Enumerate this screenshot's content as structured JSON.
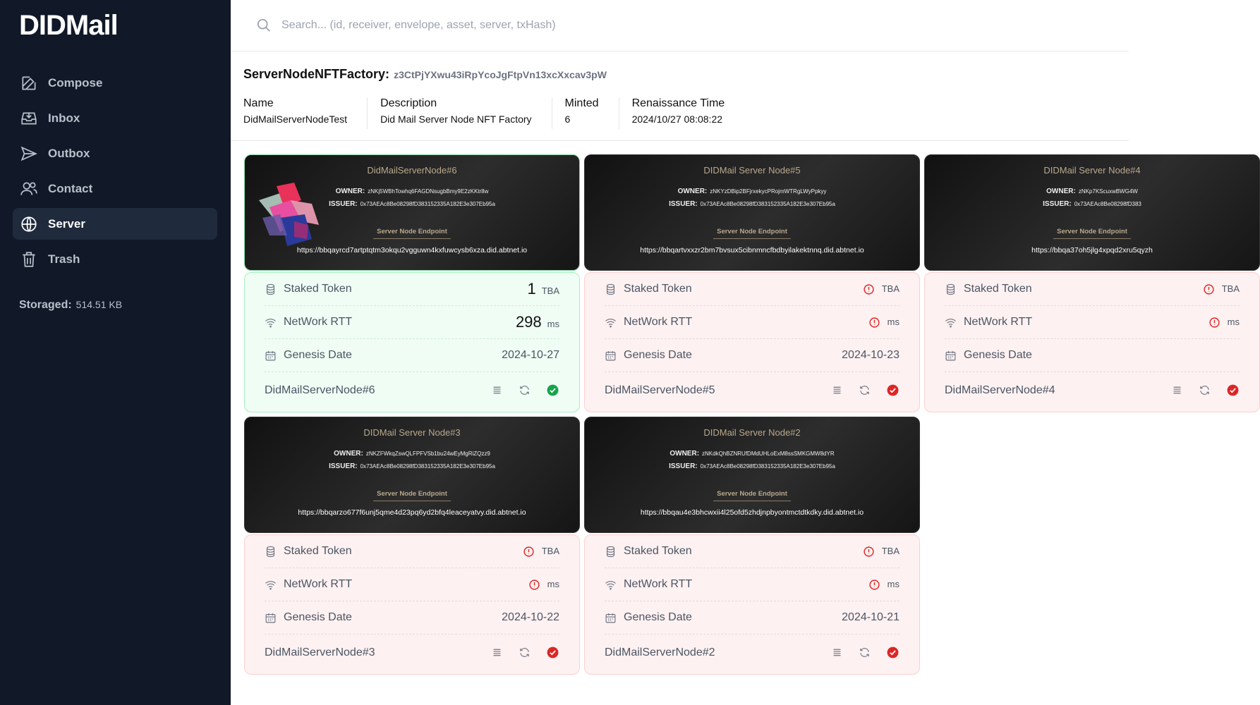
{
  "sidebar": {
    "brand": "DIDMail",
    "nav": [
      {
        "label": "Compose"
      },
      {
        "label": "Inbox"
      },
      {
        "label": "Outbox"
      },
      {
        "label": "Contact"
      },
      {
        "label": "Server"
      },
      {
        "label": "Trash"
      }
    ],
    "active": 4,
    "storage_label": "Storaged:",
    "storage_value": "514.51 KB"
  },
  "search": {
    "placeholder": "Search... (id, receiver, envelope, asset, server, txHash)"
  },
  "factory": {
    "title": "ServerNodeNFTFactory:",
    "address": "z3CtPjYXwu43iRpYcoJgFtpVn13xcXxcav3pW",
    "fields": [
      {
        "label": "Name",
        "value": "DidMailServerNodeTest"
      },
      {
        "label": "Description",
        "value": "Did Mail Server Node NFT Factory"
      },
      {
        "label": "Minted",
        "value": "6"
      },
      {
        "label": "Renaissance Time",
        "value": "2024/10/27 08:08:22"
      }
    ]
  },
  "card_labels": {
    "owner": "OWNER:",
    "issuer": "ISSUER:",
    "endpoint": "Server Node Endpoint",
    "staked": "Staked Token",
    "staked_unit": "TBA",
    "rtt": "NetWork RTT",
    "rtt_unit": "ms",
    "genesis": "Genesis Date"
  },
  "cards": [
    {
      "header": "DidMailServerNode#6",
      "owner": "zNKj5WBhTowhq6FAGDNsugbBmy9E2zKKtr8w",
      "issuer": "0x73AEAc8Be08298fD383152335A182E3e307Eb95a",
      "endpoint": "https://bbqayrcd7artptqtm3okqu2vgguwn4kxfuwcysb6xza.did.abtnet.io",
      "staked": 1,
      "rtt": 298,
      "genesis": "2024-10-27",
      "name": "DidMailServerNode#6",
      "status": "ok"
    },
    {
      "header": "DIDMail Server Node#5",
      "owner": "zNKYzDBip2BFjrxekycPRojmWTRgLWyPpkyy",
      "issuer": "0x73AEAc8Be08298fD383152335A182E3e307Eb95a",
      "endpoint": "https://bbqartvxxzr2bm7bvsux5cibnmncfbdbyilakektnnq.did.abtnet.io",
      "staked": null,
      "rtt": null,
      "genesis": "2024-10-23",
      "name": "DidMailServerNode#5",
      "status": "error"
    },
    {
      "header": "DIDMail Server Node#4",
      "owner": "zNKp7KScuxwBWG4W",
      "issuer": "0x73AEAc8Be08298fD383",
      "endpoint": "https://bbqa37oh5jlg4xpqd2xru5qyzh",
      "staked": null,
      "rtt": null,
      "genesis": null,
      "name": "DidMailServerNode#4",
      "status": "error"
    },
    {
      "header": "DIDMail Server Node#3",
      "owner": "zNKZFWkqZswQLFPFVSb1bu24wEyMgRiZQzz9",
      "issuer": "0x73AEAc8Be08298fD383152335A182E3e307Eb95a",
      "endpoint": "https://bbqarzo677f6unj5qme4d23pq6yd2bfq4leaceyatvy.did.abtnet.io",
      "staked": null,
      "rtt": null,
      "genesis": "2024-10-22",
      "name": "DidMailServerNode#3",
      "status": "error"
    },
    {
      "header": "DIDMail Server Node#2",
      "owner": "zNKdkQhBZNRUfDMdUHLoExM8ssSMKGMW8dYR",
      "issuer": "0x73AEAc8Be08298fD383152335A182E3e307Eb95a",
      "endpoint": "https://bbqau4e3bhcwxii4l25ofd5zhdjnpbyontmctdtkdky.did.abtnet.io",
      "staked": null,
      "rtt": null,
      "genesis": "2024-10-21",
      "name": "DidMailServerNode#2",
      "status": "error"
    }
  ]
}
